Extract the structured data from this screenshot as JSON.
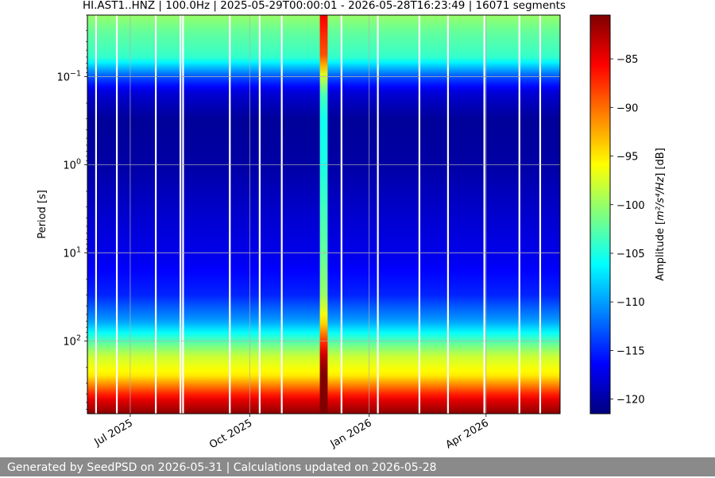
{
  "chart_data": {
    "type": "heatmap",
    "title": "HI.AST1..HNZ | 100.0Hz | 2025-05-29T00:00:01 - 2026-05-28T16:23:49 | 16071 segments",
    "xlabel": "",
    "ylabel": "Period [s]",
    "x_range": [
      "2025-05-29",
      "2026-05-28"
    ],
    "x_ticks": [
      {
        "date": "2025-07-01",
        "label": "Jul 2025"
      },
      {
        "date": "2025-10-01",
        "label": "Oct 2025"
      },
      {
        "date": "2026-01-01",
        "label": "Jan 2026"
      },
      {
        "date": "2026-04-01",
        "label": "Apr 2026"
      }
    ],
    "y_scale": "log",
    "y_inverted": true,
    "y_range": [
      0.02,
      670
    ],
    "y_ticks": [
      {
        "value": 0.1,
        "base": "10",
        "exp": "−1"
      },
      {
        "value": 1,
        "base": "10",
        "exp": "0"
      },
      {
        "value": 10,
        "base": "10",
        "exp": "1"
      },
      {
        "value": 100,
        "base": "10",
        "exp": "2"
      }
    ],
    "grid": true,
    "colormap": "jet",
    "colorbar": {
      "label_prefix": "Amplitude [",
      "label_units": "m²/s⁴/Hz",
      "label_suffix": "] [dB]",
      "range": [
        -121.5,
        -80.5
      ],
      "ticks": [
        -85,
        -90,
        -95,
        -100,
        -105,
        -110,
        -115,
        -120
      ]
    },
    "period_profile": [
      {
        "period": 0.02,
        "db": -100
      },
      {
        "period": 0.03,
        "db": -102
      },
      {
        "period": 0.06,
        "db": -104
      },
      {
        "period": 0.1,
        "db": -113
      },
      {
        "period": 0.15,
        "db": -118
      },
      {
        "period": 0.3,
        "db": -120.5
      },
      {
        "period": 1,
        "db": -120
      },
      {
        "period": 5,
        "db": -118
      },
      {
        "period": 12,
        "db": -117
      },
      {
        "period": 30,
        "db": -115
      },
      {
        "period": 60,
        "db": -110
      },
      {
        "period": 100,
        "db": -103
      },
      {
        "period": 150,
        "db": -98
      },
      {
        "period": 250,
        "db": -95
      },
      {
        "period": 450,
        "db": -85
      },
      {
        "period": 670,
        "db": -81
      }
    ],
    "events": [
      {
        "start": "2025-11-24",
        "end": "2025-11-30",
        "db_boost": 15
      }
    ],
    "data_gaps": [
      "2025-06-04",
      "2025-06-20",
      "2025-07-20",
      "2025-08-08",
      "2025-08-10",
      "2025-09-15",
      "2025-10-08",
      "2025-10-25",
      "2025-12-10",
      "2026-01-07",
      "2026-02-08",
      "2026-03-02",
      "2026-03-30",
      "2026-04-26",
      "2026-05-12"
    ]
  },
  "footer": {
    "text": "Generated by SeedPSD on 2026-05-31 | Calculations updated on 2026-05-28"
  }
}
